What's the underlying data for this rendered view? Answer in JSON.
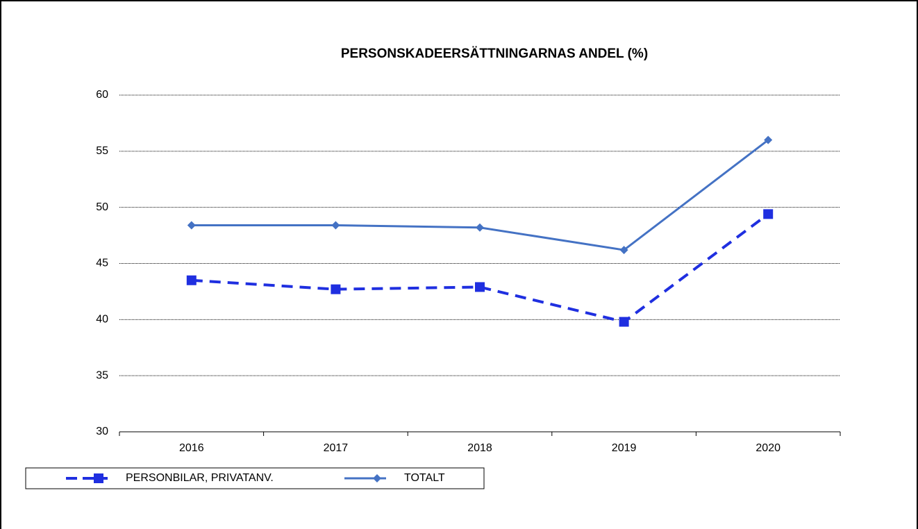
{
  "chart_data": {
    "type": "line",
    "title": "PERSONSKADEERSÄTTNINGARNAS ANDEL (%)",
    "categories": [
      "2016",
      "2017",
      "2018",
      "2019",
      "2020"
    ],
    "series": [
      {
        "name": "PERSONBILAR, PRIVATANV.",
        "color": "#1f2fe0",
        "dashed": true,
        "marker": "square",
        "values": [
          43.5,
          42.7,
          42.9,
          39.8,
          49.4
        ]
      },
      {
        "name": "TOTALT",
        "color": "#4472c4",
        "dashed": false,
        "marker": "diamond",
        "values": [
          48.4,
          48.4,
          48.2,
          46.2,
          56.0
        ]
      }
    ],
    "ylim": [
      30,
      60
    ],
    "yticks": [
      30,
      35,
      40,
      45,
      50,
      55,
      60
    ],
    "grid": true,
    "legend": "bottom-left"
  }
}
